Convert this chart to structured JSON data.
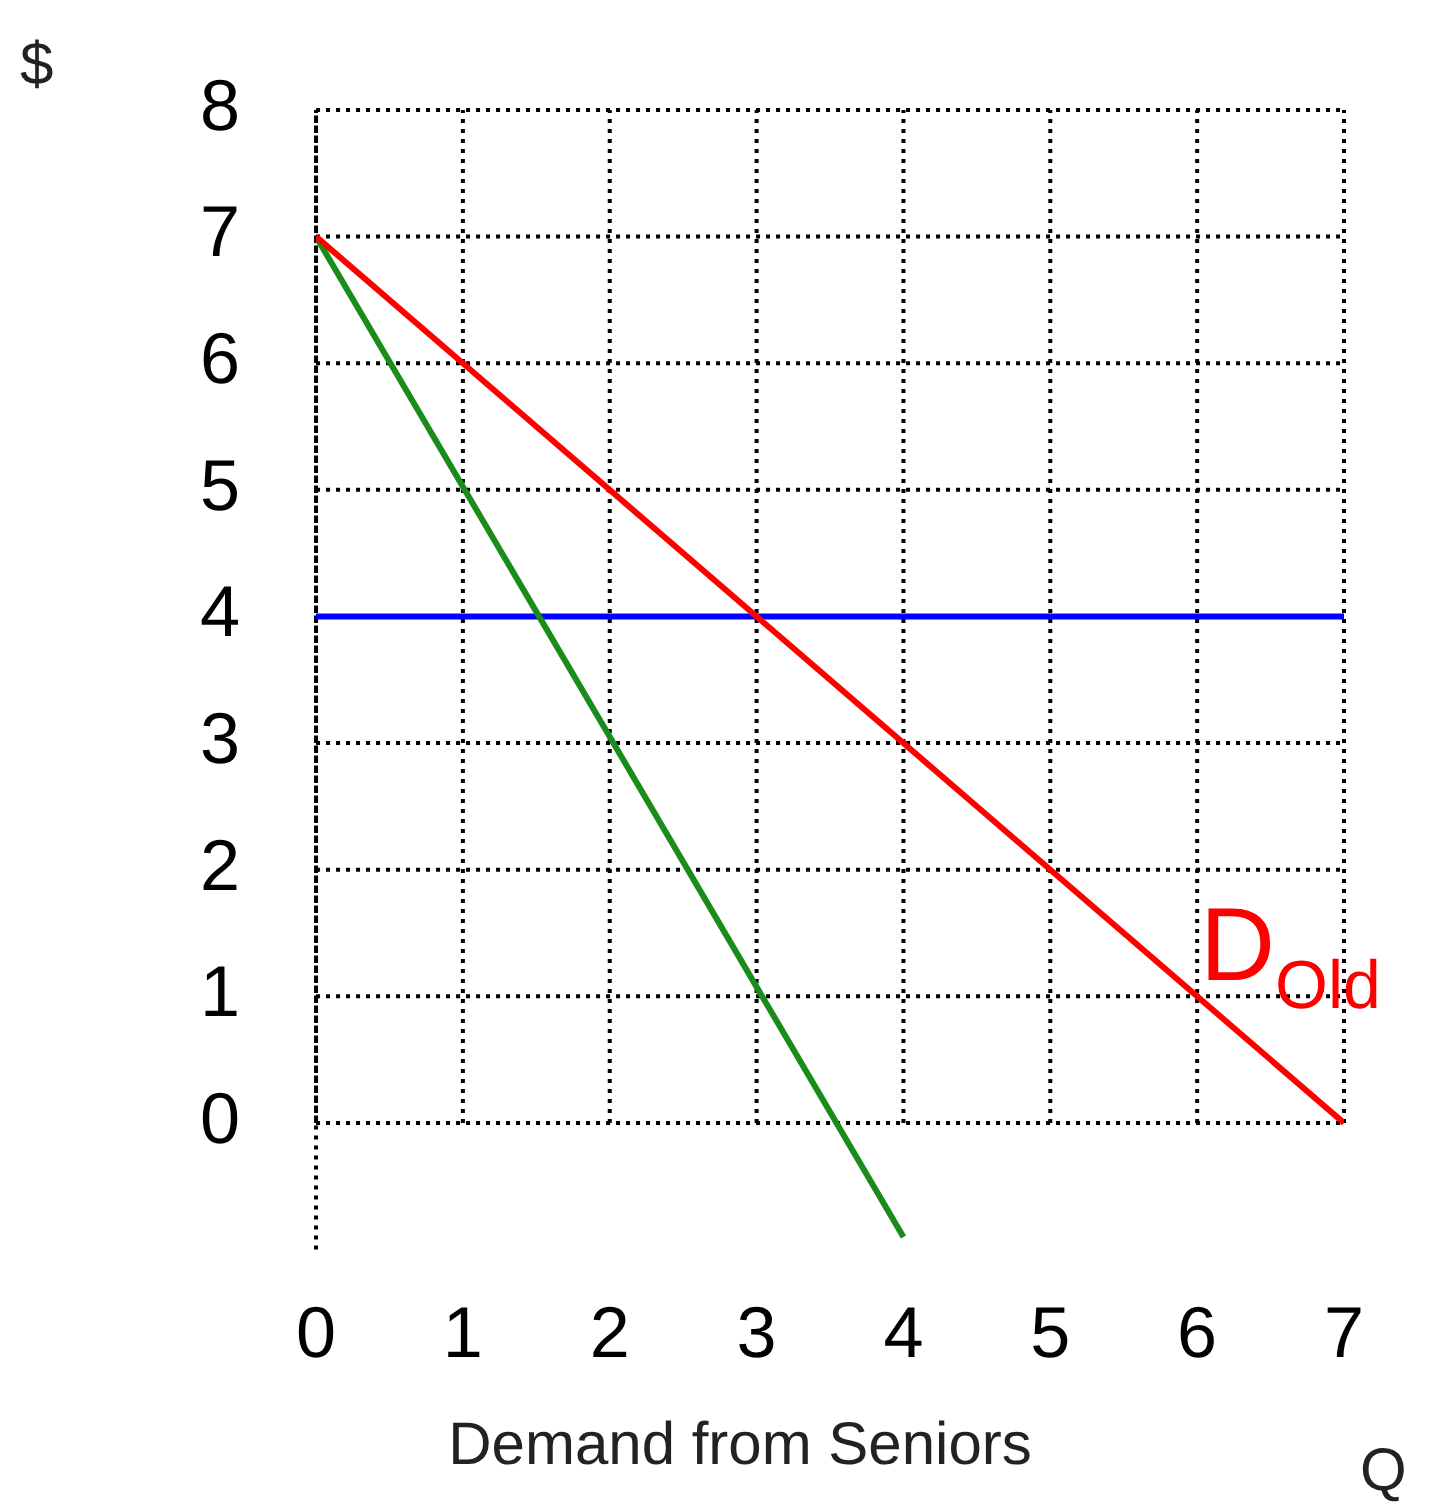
{
  "chart_data": {
    "type": "line",
    "xlabel": "Q",
    "ylabel": "$",
    "xlim": [
      0,
      7
    ],
    "ylim": [
      -1,
      8
    ],
    "xticks": [
      0,
      1,
      2,
      3,
      4,
      5,
      6,
      7
    ],
    "yticks": [
      0,
      1,
      2,
      3,
      4,
      5,
      6,
      7,
      8
    ],
    "series": [
      {
        "color": "#ff0000",
        "x": [
          0,
          7
        ],
        "values": [
          7,
          0
        ]
      },
      {
        "color": "#1a8c1a",
        "x": [
          0,
          4
        ],
        "values": [
          7,
          -0.9
        ]
      },
      {
        "color": "#0000ff",
        "x": [
          0,
          7
        ],
        "values": [
          4,
          4
        ]
      }
    ],
    "annotations": [
      "D$_{Old}$",
      "Demand from Seniors"
    ],
    "grid": true,
    "legend": false,
    "marker": "none",
    "line_style": "solid"
  }
}
